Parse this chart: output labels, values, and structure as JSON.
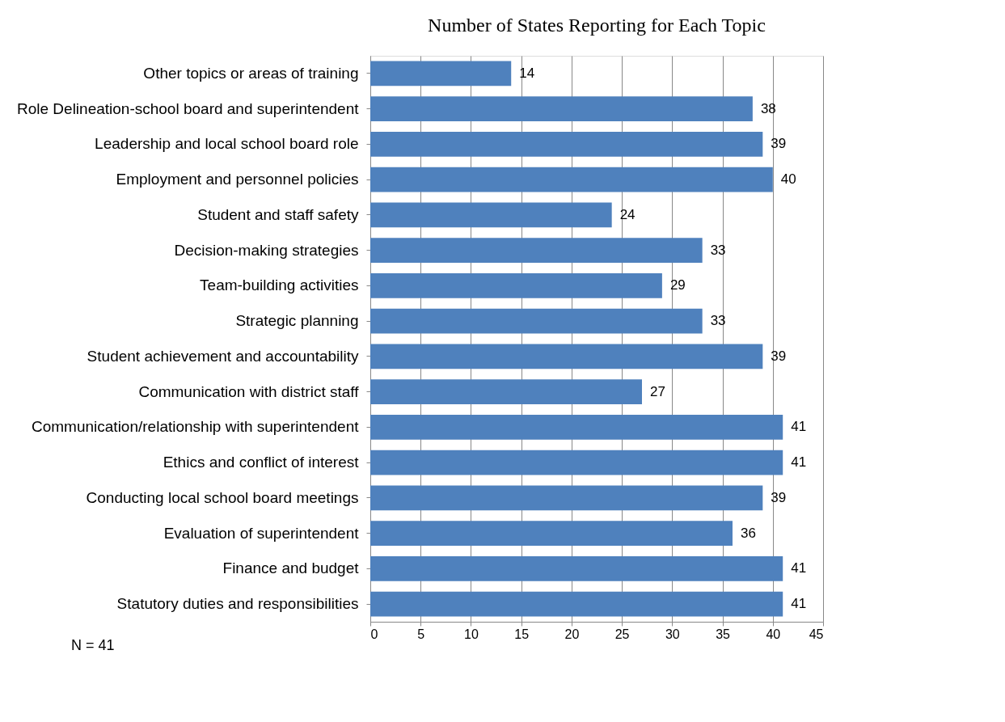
{
  "chart_data": {
    "type": "bar",
    "orientation": "horizontal",
    "title": "Number of States Reporting for Each Topic",
    "categories": [
      "Other topics or areas of training",
      "Role Delineation-school board and  superintendent",
      "Leadership and local school board role",
      "Employment and personnel policies",
      "Student and staff safety",
      "Decision-making strategies",
      "Team-building activities",
      "Strategic planning",
      "Student achievement and accountability",
      "Communication with  district staff",
      "Communication/relationship with superintendent",
      "Ethics and conflict of interest",
      "Conducting local school board meetings",
      "Evaluation of superintendent",
      "Finance and budget",
      "Statutory duties and responsibilities"
    ],
    "values": [
      14,
      38,
      39,
      40,
      24,
      33,
      29,
      33,
      39,
      27,
      41,
      41,
      39,
      36,
      41,
      41
    ],
    "color": "#4f81bd",
    "xlim": [
      0,
      45
    ],
    "xticks": [
      0,
      5,
      10,
      15,
      20,
      25,
      30,
      35,
      40,
      45
    ],
    "grid": "x",
    "data_labels": true,
    "annotations": [
      "N = 41"
    ]
  }
}
